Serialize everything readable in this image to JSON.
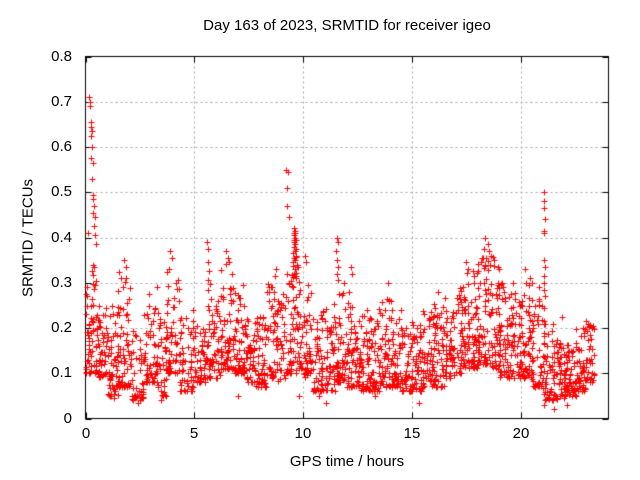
{
  "window": {
    "background": "#ffffff",
    "text_color": "#000000"
  },
  "chart_data": {
    "type": "scatter",
    "title": "Day 163 of 2023, SRMTID for receiver igeo",
    "xlabel": "GPS time / hours",
    "ylabel": "SRMTID / TECUs",
    "xlim": [
      0,
      24
    ],
    "ylim": [
      0,
      0.8
    ],
    "xticks": [
      0,
      5,
      10,
      15,
      20
    ],
    "xtick_labels": [
      "0",
      "5",
      "10",
      "15",
      "20"
    ],
    "yticks": [
      0,
      0.1,
      0.2,
      0.3,
      0.4,
      0.5,
      0.6,
      0.7,
      0.8
    ],
    "ytick_labels": [
      "0",
      "0.1",
      "0.2",
      "0.3",
      "0.4",
      "0.5",
      "0.6",
      "0.7",
      "0.8"
    ],
    "grid": true,
    "grid_style": "dotted-gray",
    "grid_color": "#a6a6a6",
    "legend": false,
    "marker": "plus",
    "marker_color": "#ff0000",
    "border_color": "#000000",
    "density_bins_columns": [
      "t_start_hours",
      "t_end_hours",
      "srmtid_min",
      "srmtid_max",
      "point_count"
    ],
    "density_bins": [
      [
        0.0,
        0.5,
        0.1,
        0.33,
        55
      ],
      [
        0.5,
        1.0,
        0.09,
        0.28,
        50
      ],
      [
        1.0,
        1.5,
        0.05,
        0.25,
        55
      ],
      [
        1.5,
        2.1,
        0.07,
        0.33,
        60
      ],
      [
        2.1,
        2.7,
        0.04,
        0.2,
        45
      ],
      [
        2.7,
        3.3,
        0.08,
        0.31,
        55
      ],
      [
        3.3,
        3.7,
        0.05,
        0.25,
        40
      ],
      [
        3.7,
        4.3,
        0.1,
        0.33,
        55
      ],
      [
        4.3,
        5.0,
        0.06,
        0.24,
        55
      ],
      [
        5.0,
        5.6,
        0.08,
        0.22,
        50
      ],
      [
        5.6,
        6.2,
        0.09,
        0.3,
        50
      ],
      [
        6.2,
        6.8,
        0.11,
        0.35,
        65
      ],
      [
        6.8,
        7.3,
        0.1,
        0.3,
        55
      ],
      [
        7.3,
        7.8,
        0.08,
        0.22,
        50
      ],
      [
        7.8,
        8.3,
        0.07,
        0.24,
        50
      ],
      [
        8.3,
        8.7,
        0.09,
        0.3,
        40
      ],
      [
        8.7,
        9.2,
        0.08,
        0.28,
        40
      ],
      [
        9.2,
        9.5,
        0.1,
        0.33,
        30
      ],
      [
        9.5,
        9.9,
        0.1,
        0.36,
        45
      ],
      [
        9.9,
        10.4,
        0.09,
        0.3,
        45
      ],
      [
        10.4,
        11.0,
        0.06,
        0.24,
        50
      ],
      [
        11.0,
        11.5,
        0.06,
        0.26,
        50
      ],
      [
        11.5,
        12.0,
        0.08,
        0.3,
        50
      ],
      [
        12.0,
        12.5,
        0.07,
        0.28,
        50
      ],
      [
        12.5,
        13.0,
        0.06,
        0.24,
        50
      ],
      [
        13.0,
        13.5,
        0.06,
        0.25,
        50
      ],
      [
        13.5,
        14.0,
        0.07,
        0.27,
        50
      ],
      [
        14.0,
        14.5,
        0.07,
        0.24,
        50
      ],
      [
        14.5,
        15.0,
        0.06,
        0.22,
        50
      ],
      [
        15.0,
        15.5,
        0.06,
        0.22,
        50
      ],
      [
        15.5,
        16.0,
        0.07,
        0.24,
        50
      ],
      [
        16.0,
        16.5,
        0.07,
        0.27,
        50
      ],
      [
        16.5,
        17.0,
        0.09,
        0.24,
        50
      ],
      [
        17.0,
        17.5,
        0.1,
        0.29,
        50
      ],
      [
        17.5,
        18.0,
        0.11,
        0.33,
        55
      ],
      [
        18.0,
        18.5,
        0.12,
        0.36,
        60
      ],
      [
        18.5,
        19.0,
        0.11,
        0.36,
        55
      ],
      [
        19.0,
        19.5,
        0.09,
        0.31,
        50
      ],
      [
        19.5,
        20.0,
        0.09,
        0.29,
        50
      ],
      [
        20.0,
        20.5,
        0.09,
        0.3,
        50
      ],
      [
        20.5,
        21.0,
        0.07,
        0.27,
        45
      ],
      [
        21.0,
        21.5,
        0.04,
        0.21,
        45
      ],
      [
        21.5,
        22.0,
        0.04,
        0.18,
        50
      ],
      [
        22.0,
        22.5,
        0.05,
        0.17,
        50
      ],
      [
        22.5,
        23.0,
        0.06,
        0.2,
        50
      ],
      [
        23.0,
        23.35,
        0.08,
        0.21,
        30
      ]
    ],
    "outlier_points_columns": [
      "t_hours",
      "srmtid_tecus"
    ],
    "outlier_points": [
      [
        0.13,
        0.41
      ],
      [
        0.18,
        0.71
      ],
      [
        0.21,
        0.7
      ],
      [
        0.19,
        0.69
      ],
      [
        0.26,
        0.655
      ],
      [
        0.23,
        0.645
      ],
      [
        0.28,
        0.635
      ],
      [
        0.25,
        0.625
      ],
      [
        0.3,
        0.6
      ],
      [
        0.27,
        0.575
      ],
      [
        0.33,
        0.565
      ],
      [
        0.3,
        0.53
      ],
      [
        0.36,
        0.495
      ],
      [
        0.33,
        0.485
      ],
      [
        0.39,
        0.47
      ],
      [
        0.36,
        0.455
      ],
      [
        0.42,
        0.445
      ],
      [
        0.4,
        0.425
      ],
      [
        0.45,
        0.405
      ],
      [
        0.48,
        0.385
      ],
      [
        0.35,
        0.34
      ],
      [
        0.38,
        0.335
      ],
      [
        1.78,
        0.35
      ],
      [
        1.84,
        0.335
      ],
      [
        1.32,
        0.045
      ],
      [
        2.42,
        0.035
      ],
      [
        3.48,
        0.04
      ],
      [
        3.88,
        0.37
      ],
      [
        3.95,
        0.355
      ],
      [
        5.58,
        0.39
      ],
      [
        5.62,
        0.375
      ],
      [
        5.6,
        0.345
      ],
      [
        5.65,
        0.325
      ],
      [
        5.61,
        0.305
      ],
      [
        5.63,
        0.285
      ],
      [
        6.45,
        0.37
      ],
      [
        6.55,
        0.355
      ],
      [
        7.02,
        0.05
      ],
      [
        8.68,
        0.315
      ],
      [
        8.72,
        0.33
      ],
      [
        9.22,
        0.55
      ],
      [
        9.28,
        0.545
      ],
      [
        9.25,
        0.51
      ],
      [
        9.24,
        0.47
      ],
      [
        9.32,
        0.445
      ],
      [
        9.55,
        0.42
      ],
      [
        9.6,
        0.415
      ],
      [
        9.58,
        0.41
      ],
      [
        9.63,
        0.41
      ],
      [
        9.56,
        0.405
      ],
      [
        9.61,
        0.4
      ],
      [
        9.59,
        0.395
      ],
      [
        9.64,
        0.395
      ],
      [
        9.57,
        0.39
      ],
      [
        9.62,
        0.385
      ],
      [
        9.55,
        0.38
      ],
      [
        9.66,
        0.375
      ],
      [
        9.6,
        0.37
      ],
      [
        9.52,
        0.365
      ],
      [
        9.68,
        0.36
      ],
      [
        9.58,
        0.355
      ],
      [
        9.63,
        0.35
      ],
      [
        9.5,
        0.345
      ],
      [
        9.7,
        0.34
      ],
      [
        9.61,
        0.33
      ],
      [
        9.56,
        0.32
      ],
      [
        9.65,
        0.31
      ],
      [
        9.78,
        0.05
      ],
      [
        10.05,
        0.36
      ],
      [
        10.12,
        0.345
      ],
      [
        10.7,
        0.05
      ],
      [
        11.05,
        0.035
      ],
      [
        11.52,
        0.4
      ],
      [
        11.57,
        0.39
      ],
      [
        11.5,
        0.37
      ],
      [
        11.55,
        0.35
      ],
      [
        11.6,
        0.335
      ],
      [
        11.53,
        0.32
      ],
      [
        11.58,
        0.305
      ],
      [
        11.62,
        0.275
      ],
      [
        12.18,
        0.335
      ],
      [
        12.25,
        0.32
      ],
      [
        13.3,
        0.05
      ],
      [
        13.88,
        0.3
      ],
      [
        14.02,
        0.26
      ],
      [
        15.3,
        0.035
      ],
      [
        16.18,
        0.28
      ],
      [
        17.45,
        0.345
      ],
      [
        17.55,
        0.33
      ],
      [
        18.2,
        0.355
      ],
      [
        18.28,
        0.375
      ],
      [
        18.35,
        0.4
      ],
      [
        18.45,
        0.385
      ],
      [
        18.52,
        0.37
      ],
      [
        18.6,
        0.36
      ],
      [
        19.62,
        0.3
      ],
      [
        20.15,
        0.33
      ],
      [
        20.4,
        0.31
      ],
      [
        20.48,
        0.3
      ],
      [
        20.8,
        0.29
      ],
      [
        21.02,
        0.5
      ],
      [
        21.06,
        0.48
      ],
      [
        21.03,
        0.465
      ],
      [
        21.08,
        0.44
      ],
      [
        21.02,
        0.415
      ],
      [
        21.06,
        0.41
      ],
      [
        21.04,
        0.35
      ],
      [
        21.07,
        0.335
      ],
      [
        21.02,
        0.315
      ],
      [
        21.05,
        0.3
      ],
      [
        21.03,
        0.285
      ],
      [
        21.08,
        0.27
      ],
      [
        21.05,
        0.245
      ],
      [
        21.02,
        0.215
      ],
      [
        21.06,
        0.19
      ],
      [
        21.04,
        0.165
      ],
      [
        21.05,
        0.135
      ],
      [
        21.03,
        0.105
      ],
      [
        21.07,
        0.08
      ],
      [
        21.04,
        0.055
      ],
      [
        21.05,
        0.03
      ],
      [
        21.5,
        0.02
      ],
      [
        21.85,
        0.225
      ],
      [
        22.1,
        0.03
      ],
      [
        22.95,
        0.215
      ],
      [
        23.1,
        0.205
      ]
    ]
  }
}
